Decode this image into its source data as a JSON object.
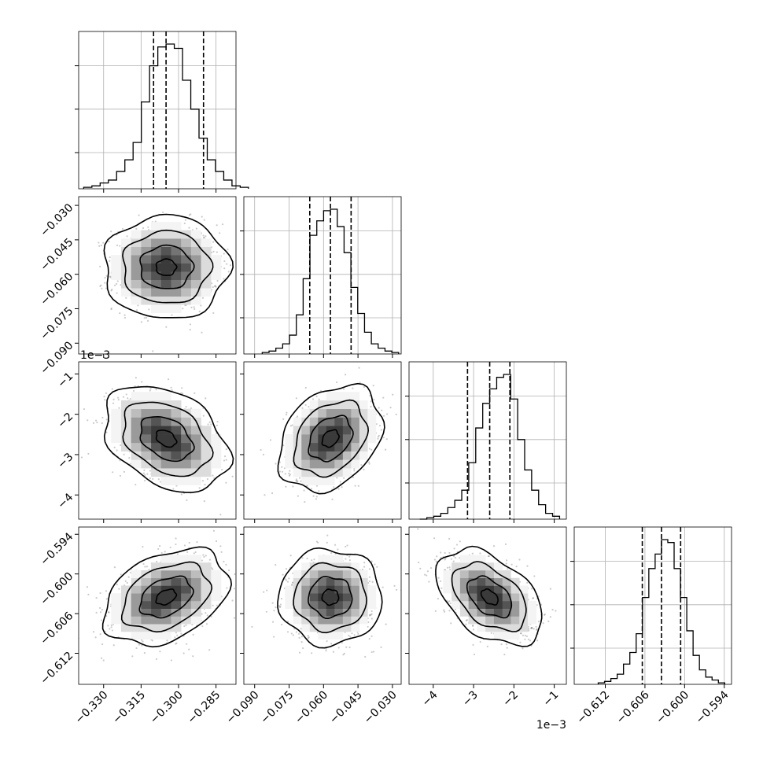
{
  "chart_data": {
    "type": "corner",
    "params": [
      {
        "median": -0.305,
        "q16": -0.31,
        "q84": -0.29,
        "ticks": [
          "−0.330",
          "−0.315",
          "−0.300",
          "−0.285"
        ],
        "tick_values": [
          -0.33,
          -0.315,
          -0.3,
          -0.285
        ],
        "range": [
          -0.34,
          -0.277
        ]
      },
      {
        "median": -0.057,
        "q16": -0.066,
        "q84": -0.048,
        "ticks": [
          "−0.090",
          "−0.075",
          "−0.060",
          "−0.045",
          "−0.030"
        ],
        "tick_values": [
          -0.09,
          -0.075,
          -0.06,
          -0.045,
          -0.03
        ],
        "range": [
          -0.0947,
          -0.0262
        ]
      },
      {
        "median": -0.0026,
        "q16": -0.00315,
        "q84": -0.0021,
        "ticks": [
          "−4",
          "−3",
          "−2",
          "−1"
        ],
        "tick_values": [
          -0.004,
          -0.003,
          -0.002,
          -0.001
        ],
        "range": [
          -0.0046,
          -0.0007
        ],
        "offset": "1e−3"
      },
      {
        "median": -0.6035,
        "q16": -0.6064,
        "q84": -0.6006,
        "ticks": [
          "−0.612",
          "−0.606",
          "−0.600",
          "−0.594"
        ],
        "tick_values": [
          -0.612,
          -0.606,
          -0.6,
          -0.594
        ],
        "range": [
          -0.6167,
          -0.5929
        ]
      }
    ],
    "correlations": [
      {
        "pair": [
          1,
          0
        ],
        "rho": 0.0
      },
      {
        "pair": [
          2,
          0
        ],
        "rho": -0.35
      },
      {
        "pair": [
          2,
          1
        ],
        "rho": 0.3
      },
      {
        "pair": [
          3,
          0
        ],
        "rho": 0.35
      },
      {
        "pair": [
          3,
          1
        ],
        "rho": 0.0
      },
      {
        "pair": [
          3,
          2
        ],
        "rho": -0.45
      }
    ],
    "histograms": [
      [
        0.01,
        0.02,
        0.04,
        0.06,
        0.12,
        0.2,
        0.32,
        0.6,
        0.85,
        0.98,
        1.0,
        0.97,
        0.75,
        0.55,
        0.35,
        0.2,
        0.12,
        0.06,
        0.02,
        0.01
      ],
      [
        0.01,
        0.02,
        0.04,
        0.07,
        0.13,
        0.27,
        0.52,
        0.82,
        0.92,
        0.99,
        1.0,
        0.88,
        0.7,
        0.46,
        0.28,
        0.15,
        0.07,
        0.04,
        0.02,
        0.01
      ],
      [
        0.0,
        0.01,
        0.02,
        0.04,
        0.08,
        0.13,
        0.2,
        0.39,
        0.63,
        0.8,
        0.9,
        0.98,
        1.0,
        0.83,
        0.55,
        0.34,
        0.2,
        0.1,
        0.04,
        0.02
      ],
      [
        0.01,
        0.02,
        0.04,
        0.07,
        0.14,
        0.22,
        0.35,
        0.6,
        0.8,
        0.9,
        1.0,
        0.98,
        0.8,
        0.6,
        0.37,
        0.2,
        0.1,
        0.05,
        0.03,
        0.01
      ]
    ],
    "grid": true,
    "quantile_lines": "dashed"
  }
}
